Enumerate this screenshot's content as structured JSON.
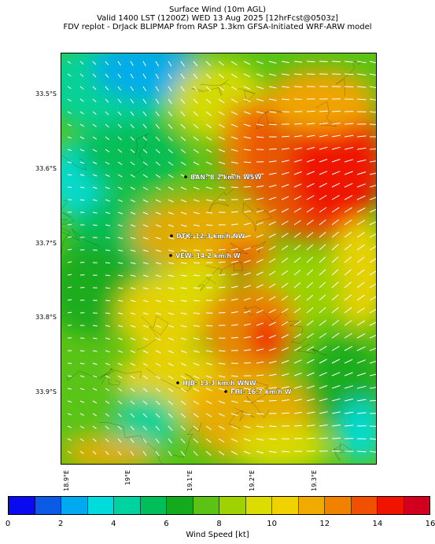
{
  "header": {
    "line1": "Surface Wind (10m AGL)",
    "line2": "Valid 1400 LST (1200Z) WED 13 Aug 2025 [12hrFcst@0503z]",
    "line3": "FDV replot - DrJack BLIPMAP from RASP 1.3km GFSA-Initiated WRF-ARW model"
  },
  "axes": {
    "latitudes": [
      "33.5°S",
      "33.6°S",
      "33.7°S",
      "33.8°S",
      "33.9°S"
    ],
    "longitudes": [
      "18.9°E",
      "19°E",
      "19.1°E",
      "19.2°E",
      "19.3°E"
    ]
  },
  "stations": [
    {
      "code": "BAN",
      "label": "BAN: 8.2 km/h WSW"
    },
    {
      "code": "DTK",
      "label": "DTK: 12.3 km/h NW"
    },
    {
      "code": "VEW",
      "label": "VEW: 14.2 km/h W"
    },
    {
      "code": "HJB",
      "label": "HJB: 13.3 km/h WNW"
    },
    {
      "code": "FHI",
      "label": "FHI: 16.7 km/h W"
    }
  ],
  "colorbar": {
    "label": "Wind Speed [kt]",
    "ticks": [
      "0",
      "2",
      "4",
      "6",
      "8",
      "10",
      "12",
      "14",
      "16"
    ],
    "colors": [
      "#0a0af0",
      "#0a5ae6",
      "#00aaf0",
      "#00dcdc",
      "#00d2a0",
      "#00be5a",
      "#14aa1e",
      "#5ac314",
      "#a0d200",
      "#dcdc00",
      "#f0d200",
      "#f0aa00",
      "#f08200",
      "#f05000",
      "#f01400",
      "#d2001e"
    ]
  }
}
